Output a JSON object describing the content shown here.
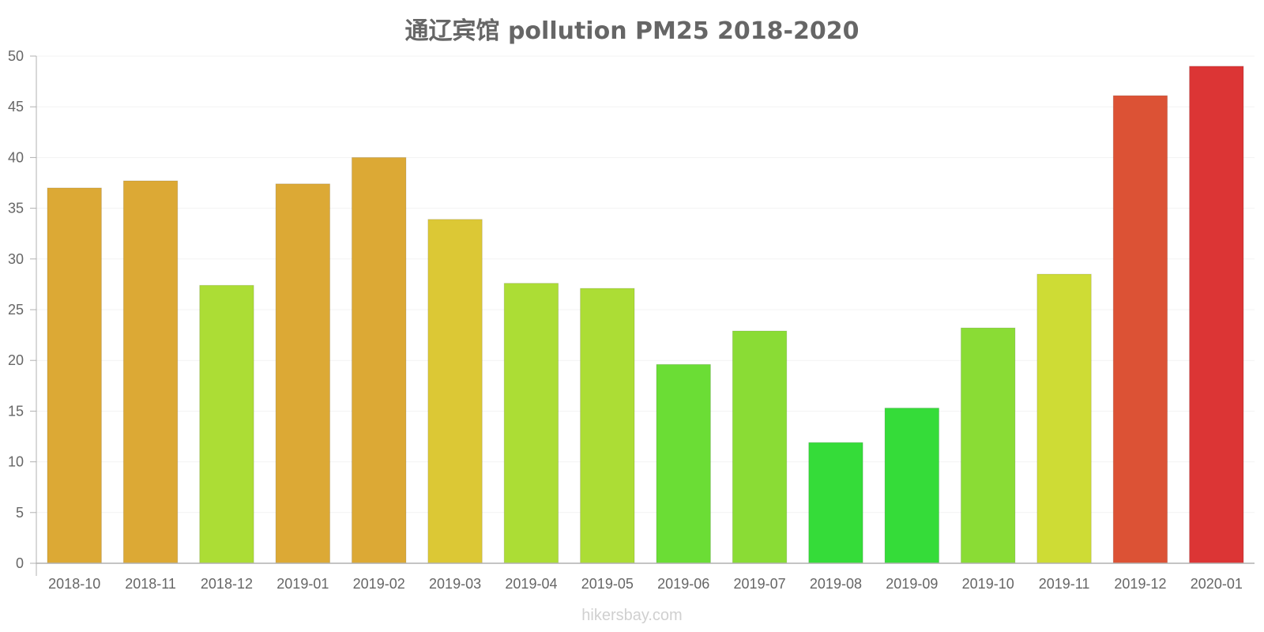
{
  "chart_data": {
    "type": "bar",
    "title": "通辽宾馆 pollution PM25 2018-2020",
    "xlabel": "",
    "ylabel": "",
    "ylim": [
      0,
      50
    ],
    "yticks": [
      0,
      5,
      10,
      15,
      20,
      25,
      30,
      35,
      40,
      45,
      50
    ],
    "grid": true,
    "categories": [
      "2018-10",
      "2018-11",
      "2018-12",
      "2019-01",
      "2019-02",
      "2019-03",
      "2019-04",
      "2019-05",
      "2019-06",
      "2019-07",
      "2019-08",
      "2019-09",
      "2019-10",
      "2019-11",
      "2019-12",
      "2020-01"
    ],
    "values": [
      37,
      37.7,
      27.4,
      37.4,
      40,
      33.9,
      27.6,
      27.1,
      19.6,
      22.9,
      11.9,
      15.3,
      23.2,
      28.5,
      46.1,
      49
    ],
    "colors": [
      "#dca935",
      "#dca935",
      "#acdd35",
      "#dca935",
      "#dca935",
      "#dcc835",
      "#acdd35",
      "#acdd35",
      "#6bdd35",
      "#8adc35",
      "#35dc39",
      "#35dc39",
      "#8adc35",
      "#cedc35",
      "#dc5235",
      "#dc3535"
    ]
  },
  "watermark": "hikersbay.com"
}
